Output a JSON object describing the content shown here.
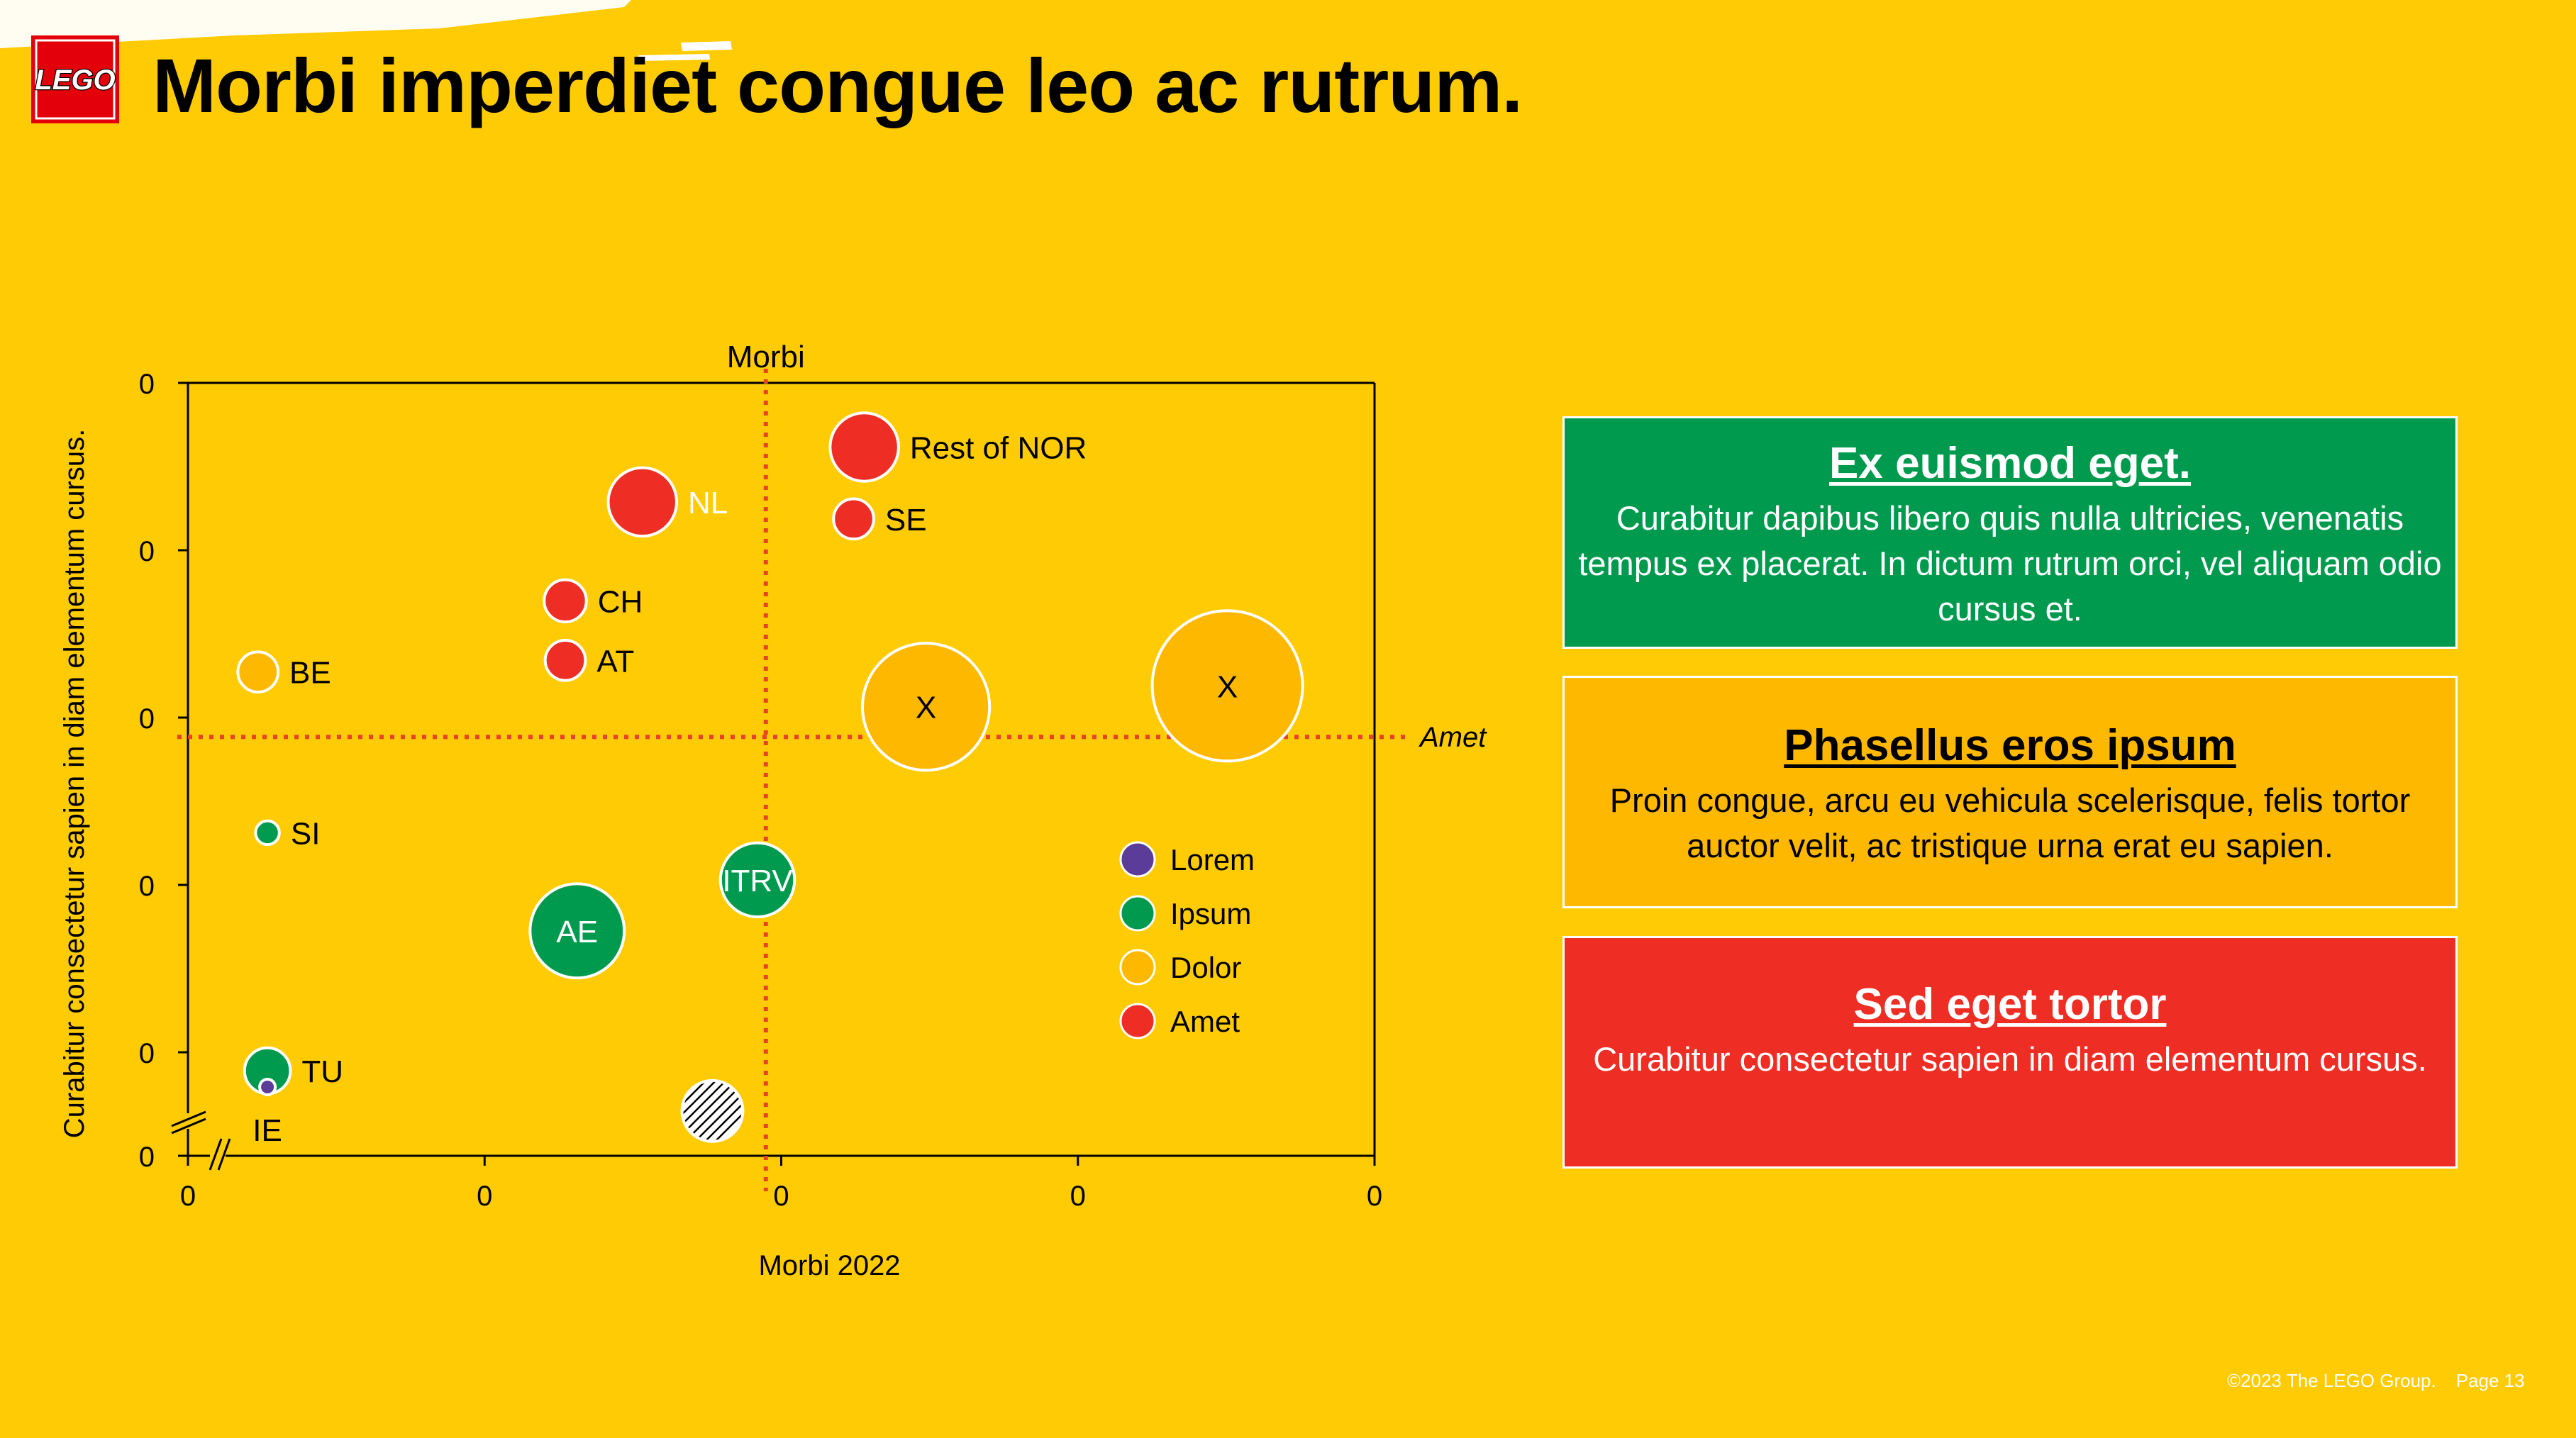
{
  "page": {
    "title": "Morbi imperdiet congue leo ac rutrum.",
    "logo_text": "LEGO",
    "footer": {
      "copyright": "©2023 The LEGO Group.",
      "page": "Page 13"
    }
  },
  "colors": {
    "background": "#FFCB05",
    "lorem": "#5B3C99",
    "ipsum": "#009A4E",
    "dolor": "#FFB800",
    "amet": "#EE2D24",
    "refline": "#E8412C"
  },
  "chart_data": {
    "type": "scatter",
    "subtype": "bubble",
    "xlabel": "Morbi 2022",
    "ylabel": "Curabitur consectetur sapien in diam elementum cursus.",
    "x_tick_labels": [
      "0",
      "0",
      "0",
      "0",
      "0"
    ],
    "y_tick_labels": [
      "0",
      "0",
      "0",
      "0",
      "0",
      "0"
    ],
    "xlim": [
      0,
      1
    ],
    "ylim": [
      0,
      1
    ],
    "y_axis_break": true,
    "grid": false,
    "legend_position": "inside-right",
    "reference_lines": [
      {
        "orientation": "vertical",
        "x": 0.487,
        "label": "Morbi"
      },
      {
        "orientation": "horizontal",
        "y": 0.542,
        "label": "Amet"
      }
    ],
    "series": [
      {
        "name": "Lorem",
        "color": "#5B3C99"
      },
      {
        "name": "Ipsum",
        "color": "#009A4E"
      },
      {
        "name": "Dolor",
        "color": "#FFB800"
      },
      {
        "name": "Amet",
        "color": "#EE2D24"
      }
    ],
    "points": [
      {
        "label": "Rest of NOR",
        "series": "Amet",
        "x": 0.57,
        "y": 0.917,
        "size": 0.29,
        "label_pos": "right"
      },
      {
        "label": "NL",
        "series": "Amet",
        "x": 0.383,
        "y": 0.846,
        "size": 0.29,
        "label_pos": "right"
      },
      {
        "label": "SE",
        "series": "Amet",
        "x": 0.561,
        "y": 0.824,
        "size": 0.1,
        "label_pos": "right"
      },
      {
        "label": "CH",
        "series": "Amet",
        "x": 0.318,
        "y": 0.718,
        "size": 0.11,
        "label_pos": "right"
      },
      {
        "label": "AT",
        "series": "Amet",
        "x": 0.318,
        "y": 0.641,
        "size": 0.1,
        "label_pos": "right"
      },
      {
        "label": "BE",
        "series": "Dolor",
        "x": 0.059,
        "y": 0.626,
        "size": 0.1,
        "label_pos": "right"
      },
      {
        "label": "X",
        "series": "Dolor",
        "x": 0.622,
        "y": 0.581,
        "size": 1.0,
        "label_pos": "center"
      },
      {
        "label": "X",
        "series": "Dolor",
        "x": 0.876,
        "y": 0.608,
        "size": 1.4,
        "label_pos": "center"
      },
      {
        "label": "SI",
        "series": "Ipsum",
        "x": 0.067,
        "y": 0.418,
        "size": 0.035,
        "label_pos": "right"
      },
      {
        "label": "ITRV",
        "series": "Ipsum",
        "x": 0.48,
        "y": 0.357,
        "size": 0.34,
        "label_pos": "center"
      },
      {
        "label": "AE",
        "series": "Ipsum",
        "x": 0.328,
        "y": 0.291,
        "size": 0.55,
        "label_pos": "center"
      },
      {
        "label": "TU",
        "series": "Ipsum",
        "x": 0.067,
        "y": 0.11,
        "size": 0.13,
        "label_pos": "right"
      },
      {
        "label": "IE",
        "series": "Lorem",
        "x": 0.067,
        "y": 0.089,
        "size": 0.004,
        "label_pos": "below"
      },
      {
        "label": "",
        "series": "Other",
        "x": 0.442,
        "y": 0.058,
        "size": 0.23,
        "label_pos": "none",
        "hatched": true
      }
    ]
  },
  "boxes": [
    {
      "title": "Ex euismod eget.",
      "text": "Curabitur dapibus libero quis nulla ultricies, venenatis tempus ex placerat. In dictum rutrum orci, vel aliquam odio cursus et."
    },
    {
      "title": "Phasellus eros ipsum",
      "text": "Proin congue, arcu eu vehicula scelerisque, felis tortor auctor velit, ac tristique urna erat eu sapien."
    },
    {
      "title": "Sed eget tortor",
      "text": "Curabitur consectetur sapien in diam elementum cursus."
    }
  ]
}
